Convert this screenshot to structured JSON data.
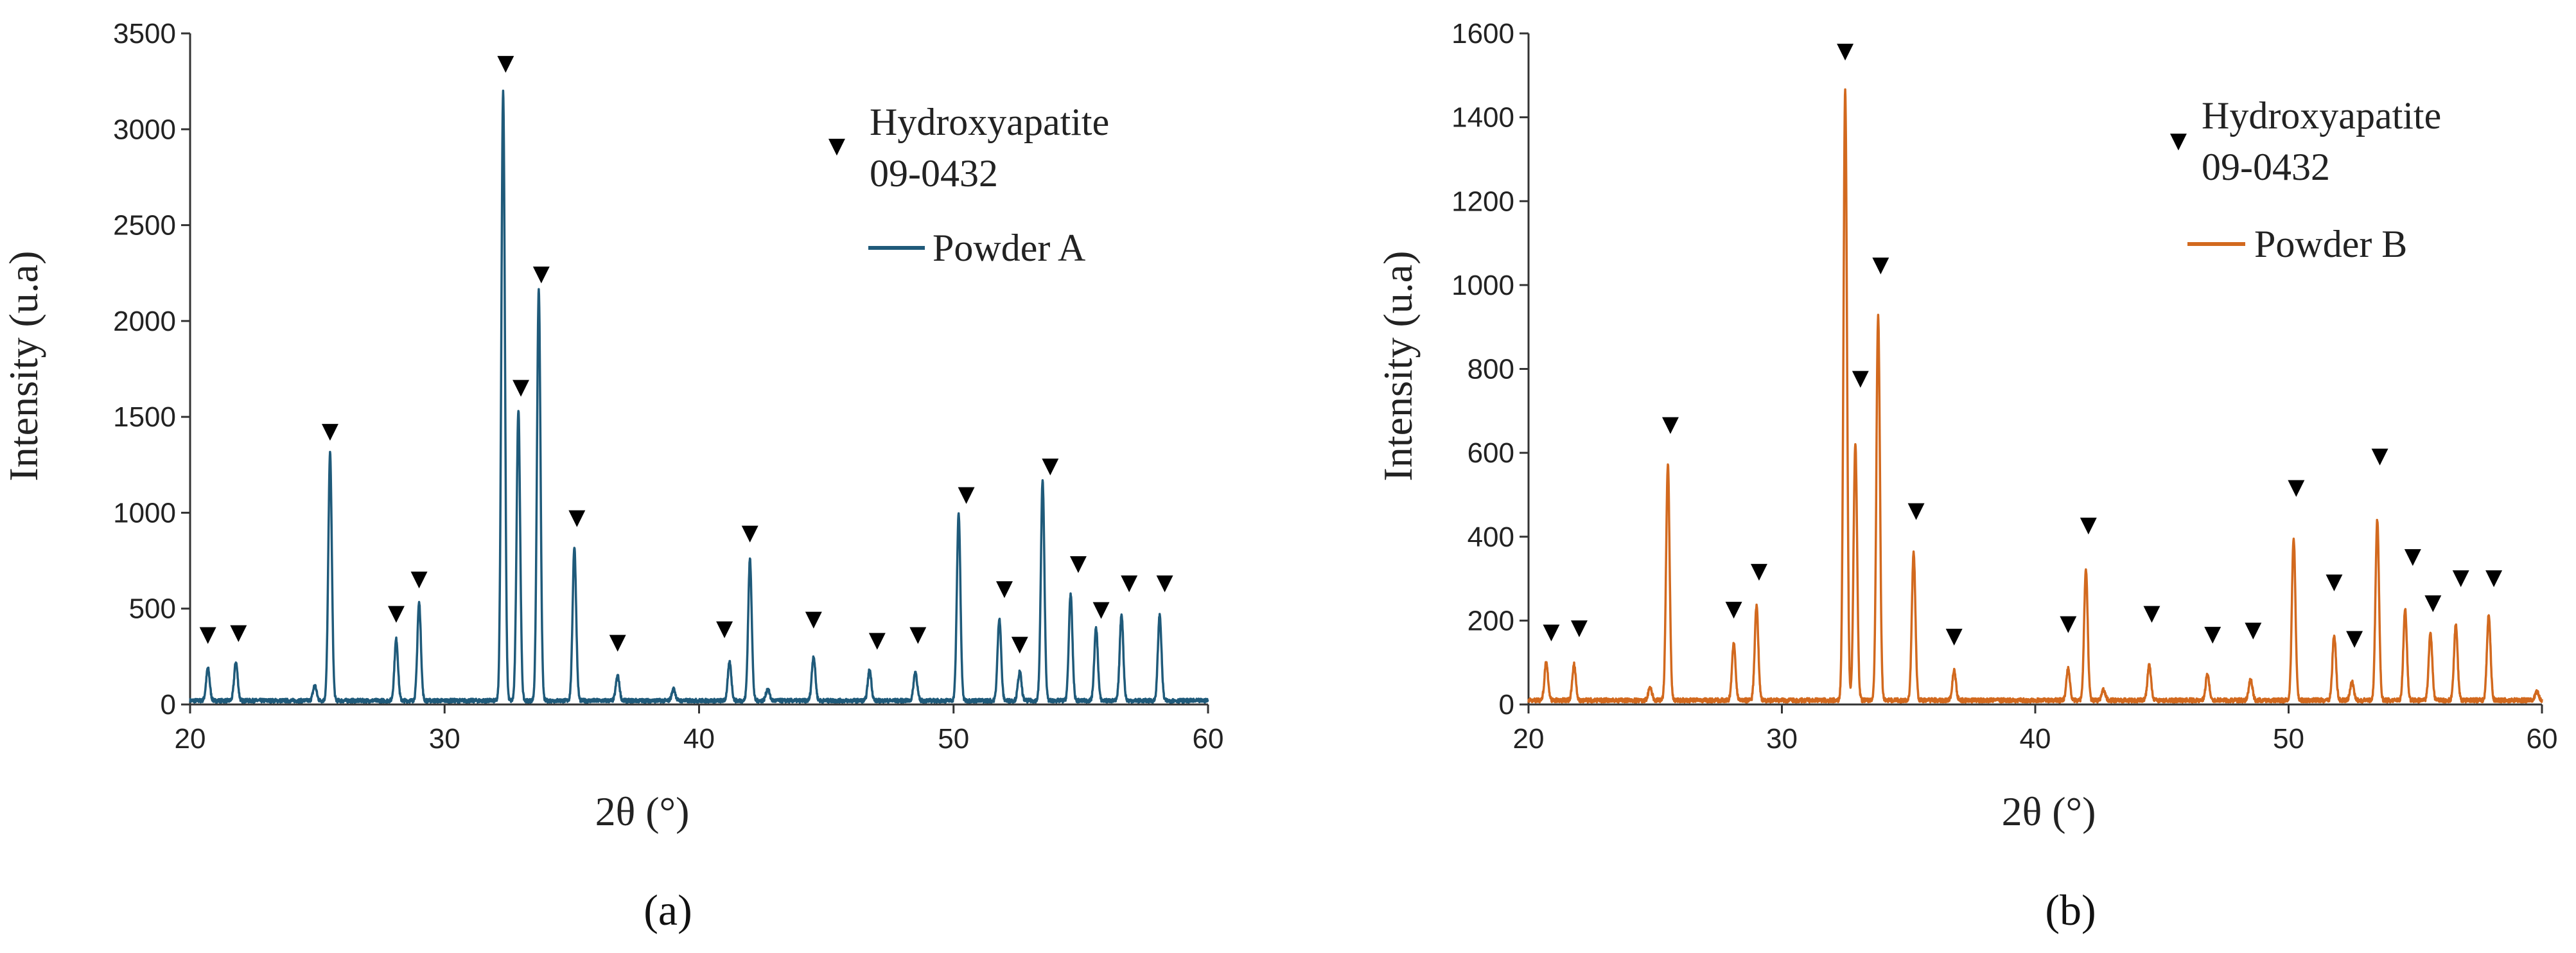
{
  "chart_data": [
    {
      "type": "line",
      "panel_label": "(a)",
      "xlabel": "2θ (°)",
      "ylabel": "Intensity (u.a)",
      "xlim": [
        20,
        60
      ],
      "ylim": [
        0,
        3500
      ],
      "xticks": [
        20,
        30,
        40,
        50,
        60
      ],
      "yticks": [
        0,
        500,
        1000,
        1500,
        2000,
        2500,
        3000,
        3500
      ],
      "legend": {
        "position": "top-right",
        "marker_label_line1": "Hydroxyapatite",
        "marker_label_line2": "09-0432",
        "series_label": "Powder A"
      },
      "color": "#1f5a7a",
      "baseline": 20,
      "series": [
        {
          "name": "Powder A",
          "peaks": [
            {
              "x": 20.7,
              "y": 170
            },
            {
              "x": 21.8,
              "y": 200
            },
            {
              "x": 24.9,
              "y": 80
            },
            {
              "x": 25.5,
              "y": 1290
            },
            {
              "x": 28.1,
              "y": 320
            },
            {
              "x": 29.0,
              "y": 510
            },
            {
              "x": 32.3,
              "y": 3180
            },
            {
              "x": 32.9,
              "y": 1520
            },
            {
              "x": 33.7,
              "y": 2140
            },
            {
              "x": 35.1,
              "y": 800
            },
            {
              "x": 36.8,
              "y": 130
            },
            {
              "x": 39.0,
              "y": 60
            },
            {
              "x": 41.2,
              "y": 200
            },
            {
              "x": 42.0,
              "y": 740
            },
            {
              "x": 42.7,
              "y": 60
            },
            {
              "x": 44.5,
              "y": 230
            },
            {
              "x": 46.7,
              "y": 160
            },
            {
              "x": 48.5,
              "y": 150
            },
            {
              "x": 50.2,
              "y": 975
            },
            {
              "x": 51.8,
              "y": 430
            },
            {
              "x": 52.6,
              "y": 150
            },
            {
              "x": 53.5,
              "y": 1145
            },
            {
              "x": 54.6,
              "y": 555
            },
            {
              "x": 55.6,
              "y": 380
            },
            {
              "x": 56.6,
              "y": 450
            },
            {
              "x": 58.1,
              "y": 445
            }
          ]
        }
      ],
      "reference_markers": [
        {
          "x": 20.7,
          "y": 370
        },
        {
          "x": 21.9,
          "y": 380
        },
        {
          "x": 25.5,
          "y": 1430
        },
        {
          "x": 28.1,
          "y": 480
        },
        {
          "x": 29.0,
          "y": 660
        },
        {
          "x": 32.4,
          "y": 3350
        },
        {
          "x": 33.0,
          "y": 1660
        },
        {
          "x": 33.8,
          "y": 2250
        },
        {
          "x": 35.2,
          "y": 980
        },
        {
          "x": 36.8,
          "y": 330
        },
        {
          "x": 41.0,
          "y": 400
        },
        {
          "x": 42.0,
          "y": 900
        },
        {
          "x": 44.5,
          "y": 450
        },
        {
          "x": 47.0,
          "y": 340
        },
        {
          "x": 48.6,
          "y": 370
        },
        {
          "x": 50.5,
          "y": 1100
        },
        {
          "x": 52.0,
          "y": 610
        },
        {
          "x": 52.6,
          "y": 320
        },
        {
          "x": 53.8,
          "y": 1250
        },
        {
          "x": 54.9,
          "y": 740
        },
        {
          "x": 55.8,
          "y": 500
        },
        {
          "x": 56.9,
          "y": 640
        },
        {
          "x": 58.3,
          "y": 640
        }
      ]
    },
    {
      "type": "line",
      "panel_label": "(b)",
      "xlabel": "2θ (°)",
      "ylabel": "Intensity (u.a)",
      "xlim": [
        20,
        60
      ],
      "ylim": [
        0,
        1600
      ],
      "xticks": [
        20,
        30,
        40,
        50,
        60
      ],
      "yticks": [
        0,
        200,
        400,
        600,
        800,
        1000,
        1200,
        1400,
        1600
      ],
      "legend": {
        "position": "top-right",
        "marker_label_line1": "Hydroxyapatite",
        "marker_label_line2": "09-0432",
        "series_label": "Powder B"
      },
      "color": "#d2691e",
      "baseline": 10,
      "series": [
        {
          "name": "Powder B",
          "peaks": [
            {
              "x": 20.7,
              "y": 90
            },
            {
              "x": 21.8,
              "y": 85
            },
            {
              "x": 24.8,
              "y": 30
            },
            {
              "x": 25.5,
              "y": 560
            },
            {
              "x": 28.1,
              "y": 135
            },
            {
              "x": 29.0,
              "y": 225
            },
            {
              "x": 32.5,
              "y": 1455
            },
            {
              "x": 32.9,
              "y": 610
            },
            {
              "x": 33.8,
              "y": 915
            },
            {
              "x": 35.2,
              "y": 355
            },
            {
              "x": 36.8,
              "y": 70
            },
            {
              "x": 41.3,
              "y": 75
            },
            {
              "x": 42.0,
              "y": 310
            },
            {
              "x": 42.7,
              "y": 25
            },
            {
              "x": 44.5,
              "y": 85
            },
            {
              "x": 46.8,
              "y": 65
            },
            {
              "x": 48.5,
              "y": 50
            },
            {
              "x": 50.2,
              "y": 385
            },
            {
              "x": 51.8,
              "y": 155
            },
            {
              "x": 52.5,
              "y": 45
            },
            {
              "x": 53.5,
              "y": 430
            },
            {
              "x": 54.6,
              "y": 215
            },
            {
              "x": 55.6,
              "y": 160
            },
            {
              "x": 56.6,
              "y": 180
            },
            {
              "x": 57.9,
              "y": 205
            },
            {
              "x": 59.8,
              "y": 20
            }
          ]
        }
      ],
      "reference_markers": [
        {
          "x": 20.9,
          "y": 175
        },
        {
          "x": 22.0,
          "y": 185
        },
        {
          "x": 25.6,
          "y": 670
        },
        {
          "x": 28.1,
          "y": 230
        },
        {
          "x": 29.1,
          "y": 320
        },
        {
          "x": 32.5,
          "y": 1560
        },
        {
          "x": 33.1,
          "y": 780
        },
        {
          "x": 33.9,
          "y": 1050
        },
        {
          "x": 35.3,
          "y": 465
        },
        {
          "x": 36.8,
          "y": 165
        },
        {
          "x": 41.3,
          "y": 195
        },
        {
          "x": 42.1,
          "y": 430
        },
        {
          "x": 44.6,
          "y": 220
        },
        {
          "x": 47.0,
          "y": 170
        },
        {
          "x": 48.6,
          "y": 180
        },
        {
          "x": 50.3,
          "y": 520
        },
        {
          "x": 51.8,
          "y": 295
        },
        {
          "x": 52.6,
          "y": 160
        },
        {
          "x": 53.6,
          "y": 595
        },
        {
          "x": 54.9,
          "y": 355
        },
        {
          "x": 55.7,
          "y": 245
        },
        {
          "x": 56.8,
          "y": 305
        },
        {
          "x": 58.1,
          "y": 305
        }
      ]
    }
  ]
}
